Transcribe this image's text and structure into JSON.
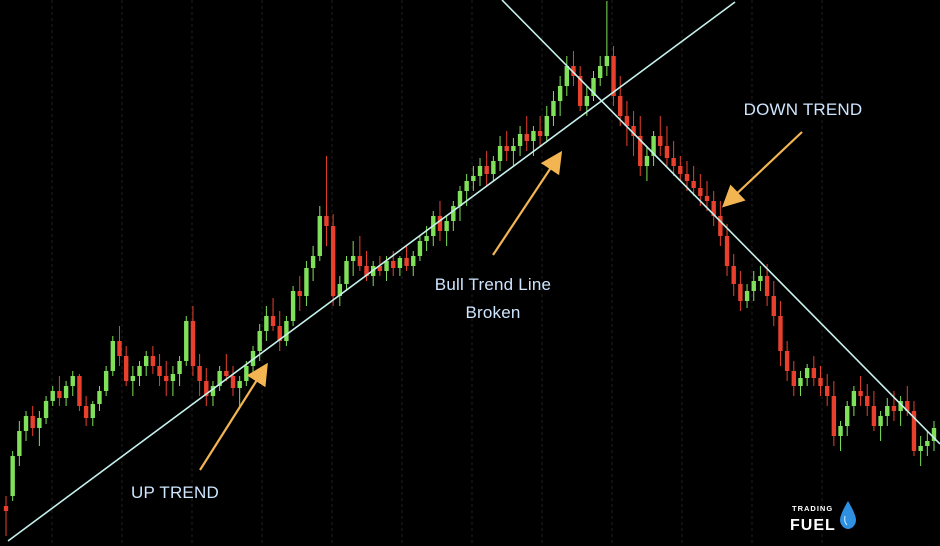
{
  "colors": {
    "background": "#000000",
    "grid": "#2a2a2a",
    "bull": "#7fe05a",
    "bear": "#e8402c",
    "trendline": "#c6f0ec",
    "arrow": "#f2b552",
    "label": "#cfe6ff",
    "logo_drop": "#2f8fe0"
  },
  "annotations": {
    "up_trend": "UP TREND",
    "bull_break_line1": "Bull Trend Line",
    "bull_break_line2": "Broken",
    "down_trend": "DOWN TREND"
  },
  "logo": {
    "top": "TRADING",
    "bottom": "FUEL",
    "icon": "water-drop-icon"
  },
  "chart_data": {
    "type": "candlestick",
    "title": "",
    "xlabel": "",
    "ylabel": "",
    "ylim": [
      0,
      546
    ],
    "grid": true,
    "legend": "none",
    "trendlines": [
      {
        "name": "UP TREND",
        "from": [
          0,
          0
        ],
        "to": [
          148,
          546
        ]
      },
      {
        "name": "DOWN TREND",
        "from": [
          100,
          546
        ],
        "to": [
          190,
          120
        ]
      }
    ],
    "series": [
      {
        "kind": "ohlc",
        "direction_up": [
          [
            40,
            50,
            10,
            35
          ],
          [
            50,
            95,
            45,
            90
          ],
          [
            90,
            125,
            80,
            115
          ],
          [
            115,
            135,
            105,
            130
          ],
          [
            130,
            140,
            110,
            118
          ],
          [
            118,
            135,
            100,
            128
          ],
          [
            128,
            150,
            122,
            145
          ],
          [
            145,
            160,
            140,
            155
          ],
          [
            155,
            170,
            140,
            148
          ],
          [
            148,
            165,
            140,
            160
          ],
          [
            160,
            175,
            150,
            170
          ],
          [
            170,
            172,
            135,
            140
          ],
          [
            140,
            150,
            120,
            128
          ],
          [
            128,
            145,
            120,
            142
          ],
          [
            142,
            160,
            135,
            155
          ],
          [
            155,
            180,
            150,
            175
          ],
          [
            175,
            210,
            170,
            205
          ],
          [
            205,
            220,
            180,
            190
          ],
          [
            190,
            200,
            160,
            165
          ],
          [
            165,
            180,
            150,
            170
          ],
          [
            170,
            185,
            160,
            180
          ],
          [
            180,
            195,
            170,
            190
          ],
          [
            190,
            200,
            172,
            180
          ],
          [
            180,
            192,
            160,
            170
          ],
          [
            170,
            185,
            150,
            165
          ],
          [
            165,
            180,
            150,
            172
          ],
          [
            172,
            190,
            160,
            185
          ],
          [
            185,
            230,
            180,
            225
          ],
          [
            225,
            240,
            170,
            180
          ],
          [
            180,
            192,
            150,
            165
          ],
          [
            165,
            178,
            140,
            150
          ],
          [
            150,
            165,
            140,
            160
          ],
          [
            160,
            180,
            155,
            175
          ],
          [
            175,
            192,
            165,
            170
          ],
          [
            170,
            180,
            150,
            158
          ],
          [
            158,
            170,
            140,
            165
          ],
          [
            165,
            185,
            160,
            180
          ],
          [
            180,
            200,
            170,
            195
          ],
          [
            195,
            222,
            185,
            215
          ],
          [
            215,
            240,
            205,
            230
          ],
          [
            230,
            248,
            215,
            220
          ],
          [
            220,
            235,
            195,
            205
          ],
          [
            205,
            230,
            200,
            225
          ],
          [
            225,
            260,
            220,
            255
          ],
          [
            255,
            270,
            235,
            250
          ],
          [
            250,
            285,
            240,
            278
          ],
          [
            278,
            300,
            265,
            290
          ],
          [
            290,
            340,
            285,
            330
          ],
          [
            330,
            390,
            300,
            320
          ],
          [
            320,
            332,
            240,
            250
          ],
          [
            250,
            270,
            240,
            262
          ],
          [
            262,
            290,
            255,
            285
          ],
          [
            285,
            305,
            270,
            290
          ],
          [
            290,
            310,
            275,
            280
          ],
          [
            280,
            295,
            265,
            270
          ],
          [
            270,
            285,
            260,
            280
          ],
          [
            280,
            290,
            270,
            275
          ],
          [
            275,
            290,
            265,
            285
          ],
          [
            285,
            295,
            270,
            278
          ],
          [
            278,
            290,
            270,
            288
          ],
          [
            288,
            300,
            275,
            280
          ],
          [
            280,
            295,
            270,
            290
          ],
          [
            290,
            310,
            285,
            305
          ],
          [
            305,
            320,
            295,
            310
          ],
          [
            310,
            335,
            300,
            330
          ],
          [
            330,
            345,
            305,
            315
          ],
          [
            315,
            330,
            300,
            325
          ],
          [
            325,
            345,
            315,
            340
          ],
          [
            340,
            360,
            325,
            355
          ],
          [
            355,
            372,
            340,
            365
          ],
          [
            365,
            380,
            355,
            370
          ],
          [
            370,
            388,
            360,
            380
          ],
          [
            380,
            395,
            360,
            372
          ],
          [
            372,
            390,
            365,
            385
          ],
          [
            385,
            410,
            375,
            400
          ],
          [
            400,
            415,
            385,
            395
          ],
          [
            395,
            408,
            380,
            400
          ],
          [
            400,
            420,
            390,
            412
          ],
          [
            412,
            430,
            395,
            405
          ],
          [
            405,
            420,
            390,
            415
          ],
          [
            415,
            430,
            400,
            410
          ],
          [
            410,
            440,
            405,
            430
          ],
          [
            430,
            455,
            420,
            445
          ],
          [
            445,
            470,
            430,
            460
          ],
          [
            460,
            490,
            450,
            480
          ],
          [
            480,
            495,
            460,
            470
          ],
          [
            470,
            480,
            435,
            440
          ],
          [
            440,
            460,
            430,
            450
          ],
          [
            450,
            475,
            445,
            468
          ],
          [
            468,
            490,
            460,
            480
          ],
          [
            480,
            545,
            470,
            490
          ],
          [
            490,
            500,
            440,
            450
          ],
          [
            450,
            470,
            420,
            430
          ],
          [
            430,
            445,
            400,
            420
          ],
          [
            420,
            435,
            390,
            410
          ],
          [
            410,
            430,
            370,
            380
          ],
          [
            380,
            400,
            365,
            390
          ],
          [
            390,
            415,
            380,
            410
          ],
          [
            410,
            430,
            390,
            400
          ],
          [
            400,
            420,
            380,
            388
          ],
          [
            388,
            405,
            370,
            380
          ],
          [
            380,
            390,
            365,
            372
          ],
          [
            372,
            385,
            355,
            365
          ],
          [
            365,
            380,
            350,
            358
          ],
          [
            358,
            372,
            340,
            350
          ],
          [
            350,
            365,
            335,
            345
          ],
          [
            345,
            355,
            320,
            330
          ],
          [
            330,
            345,
            300,
            310
          ],
          [
            310,
            322,
            270,
            280
          ],
          [
            280,
            292,
            250,
            262
          ],
          [
            262,
            275,
            235,
            245
          ],
          [
            245,
            262,
            238,
            255
          ],
          [
            255,
            275,
            245,
            265
          ],
          [
            265,
            280,
            255,
            270
          ],
          [
            270,
            282,
            240,
            250
          ],
          [
            250,
            265,
            220,
            230
          ],
          [
            230,
            245,
            180,
            195
          ],
          [
            195,
            205,
            165,
            175
          ],
          [
            175,
            185,
            150,
            160
          ],
          [
            160,
            175,
            150,
            168
          ],
          [
            168,
            182,
            160,
            178
          ],
          [
            178,
            190,
            160,
            168
          ],
          [
            168,
            180,
            150,
            160
          ],
          [
            160,
            172,
            140,
            150
          ],
          [
            150,
            165,
            100,
            110
          ],
          [
            110,
            125,
            95,
            120
          ],
          [
            120,
            145,
            110,
            140
          ],
          [
            140,
            160,
            130,
            155
          ],
          [
            155,
            170,
            140,
            150
          ],
          [
            150,
            162,
            130,
            140
          ],
          [
            140,
            155,
            115,
            120
          ],
          [
            120,
            135,
            105,
            130
          ],
          [
            130,
            148,
            120,
            140
          ],
          [
            140,
            155,
            125,
            135
          ],
          [
            135,
            150,
            120,
            145
          ],
          [
            145,
            160,
            130,
            135
          ],
          [
            135,
            145,
            90,
            95
          ],
          [
            95,
            110,
            80,
            100
          ],
          [
            100,
            115,
            90,
            105
          ],
          [
            105,
            125,
            95,
            118
          ]
        ]
      }
    ]
  }
}
